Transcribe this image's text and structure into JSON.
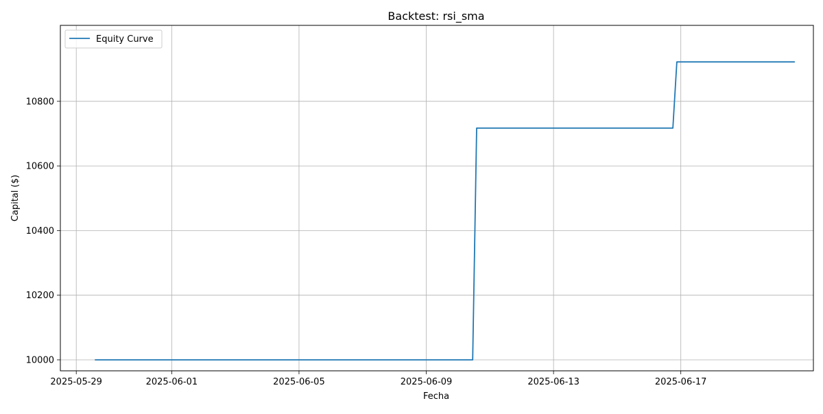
{
  "chart_data": {
    "type": "line",
    "title": "Backtest: rsi_sma",
    "xlabel": "Fecha",
    "ylabel": "Capital ($)",
    "legend_location": "upper-left",
    "grid": true,
    "line_color": "#1f77b4",
    "x_ticks": [
      "2025-05-29",
      "2025-06-01",
      "2025-06-05",
      "2025-06-09",
      "2025-06-13",
      "2025-06-17"
    ],
    "y_ticks": [
      10000,
      10200,
      10400,
      10600,
      10800
    ],
    "xlim": [
      "2025-05-28T12:00",
      "2025-06-21T04:00"
    ],
    "ylim": [
      9966,
      11035
    ],
    "series": [
      {
        "name": "Equity Curve",
        "x": [
          "2025-05-29T14:00",
          "2025-06-10T11:00",
          "2025-06-10T14:00",
          "2025-06-16T18:00",
          "2025-06-16T21:00",
          "2025-06-20T14:00"
        ],
        "y": [
          10000,
          10000,
          10717,
          10717,
          10922,
          10922
        ]
      }
    ]
  }
}
